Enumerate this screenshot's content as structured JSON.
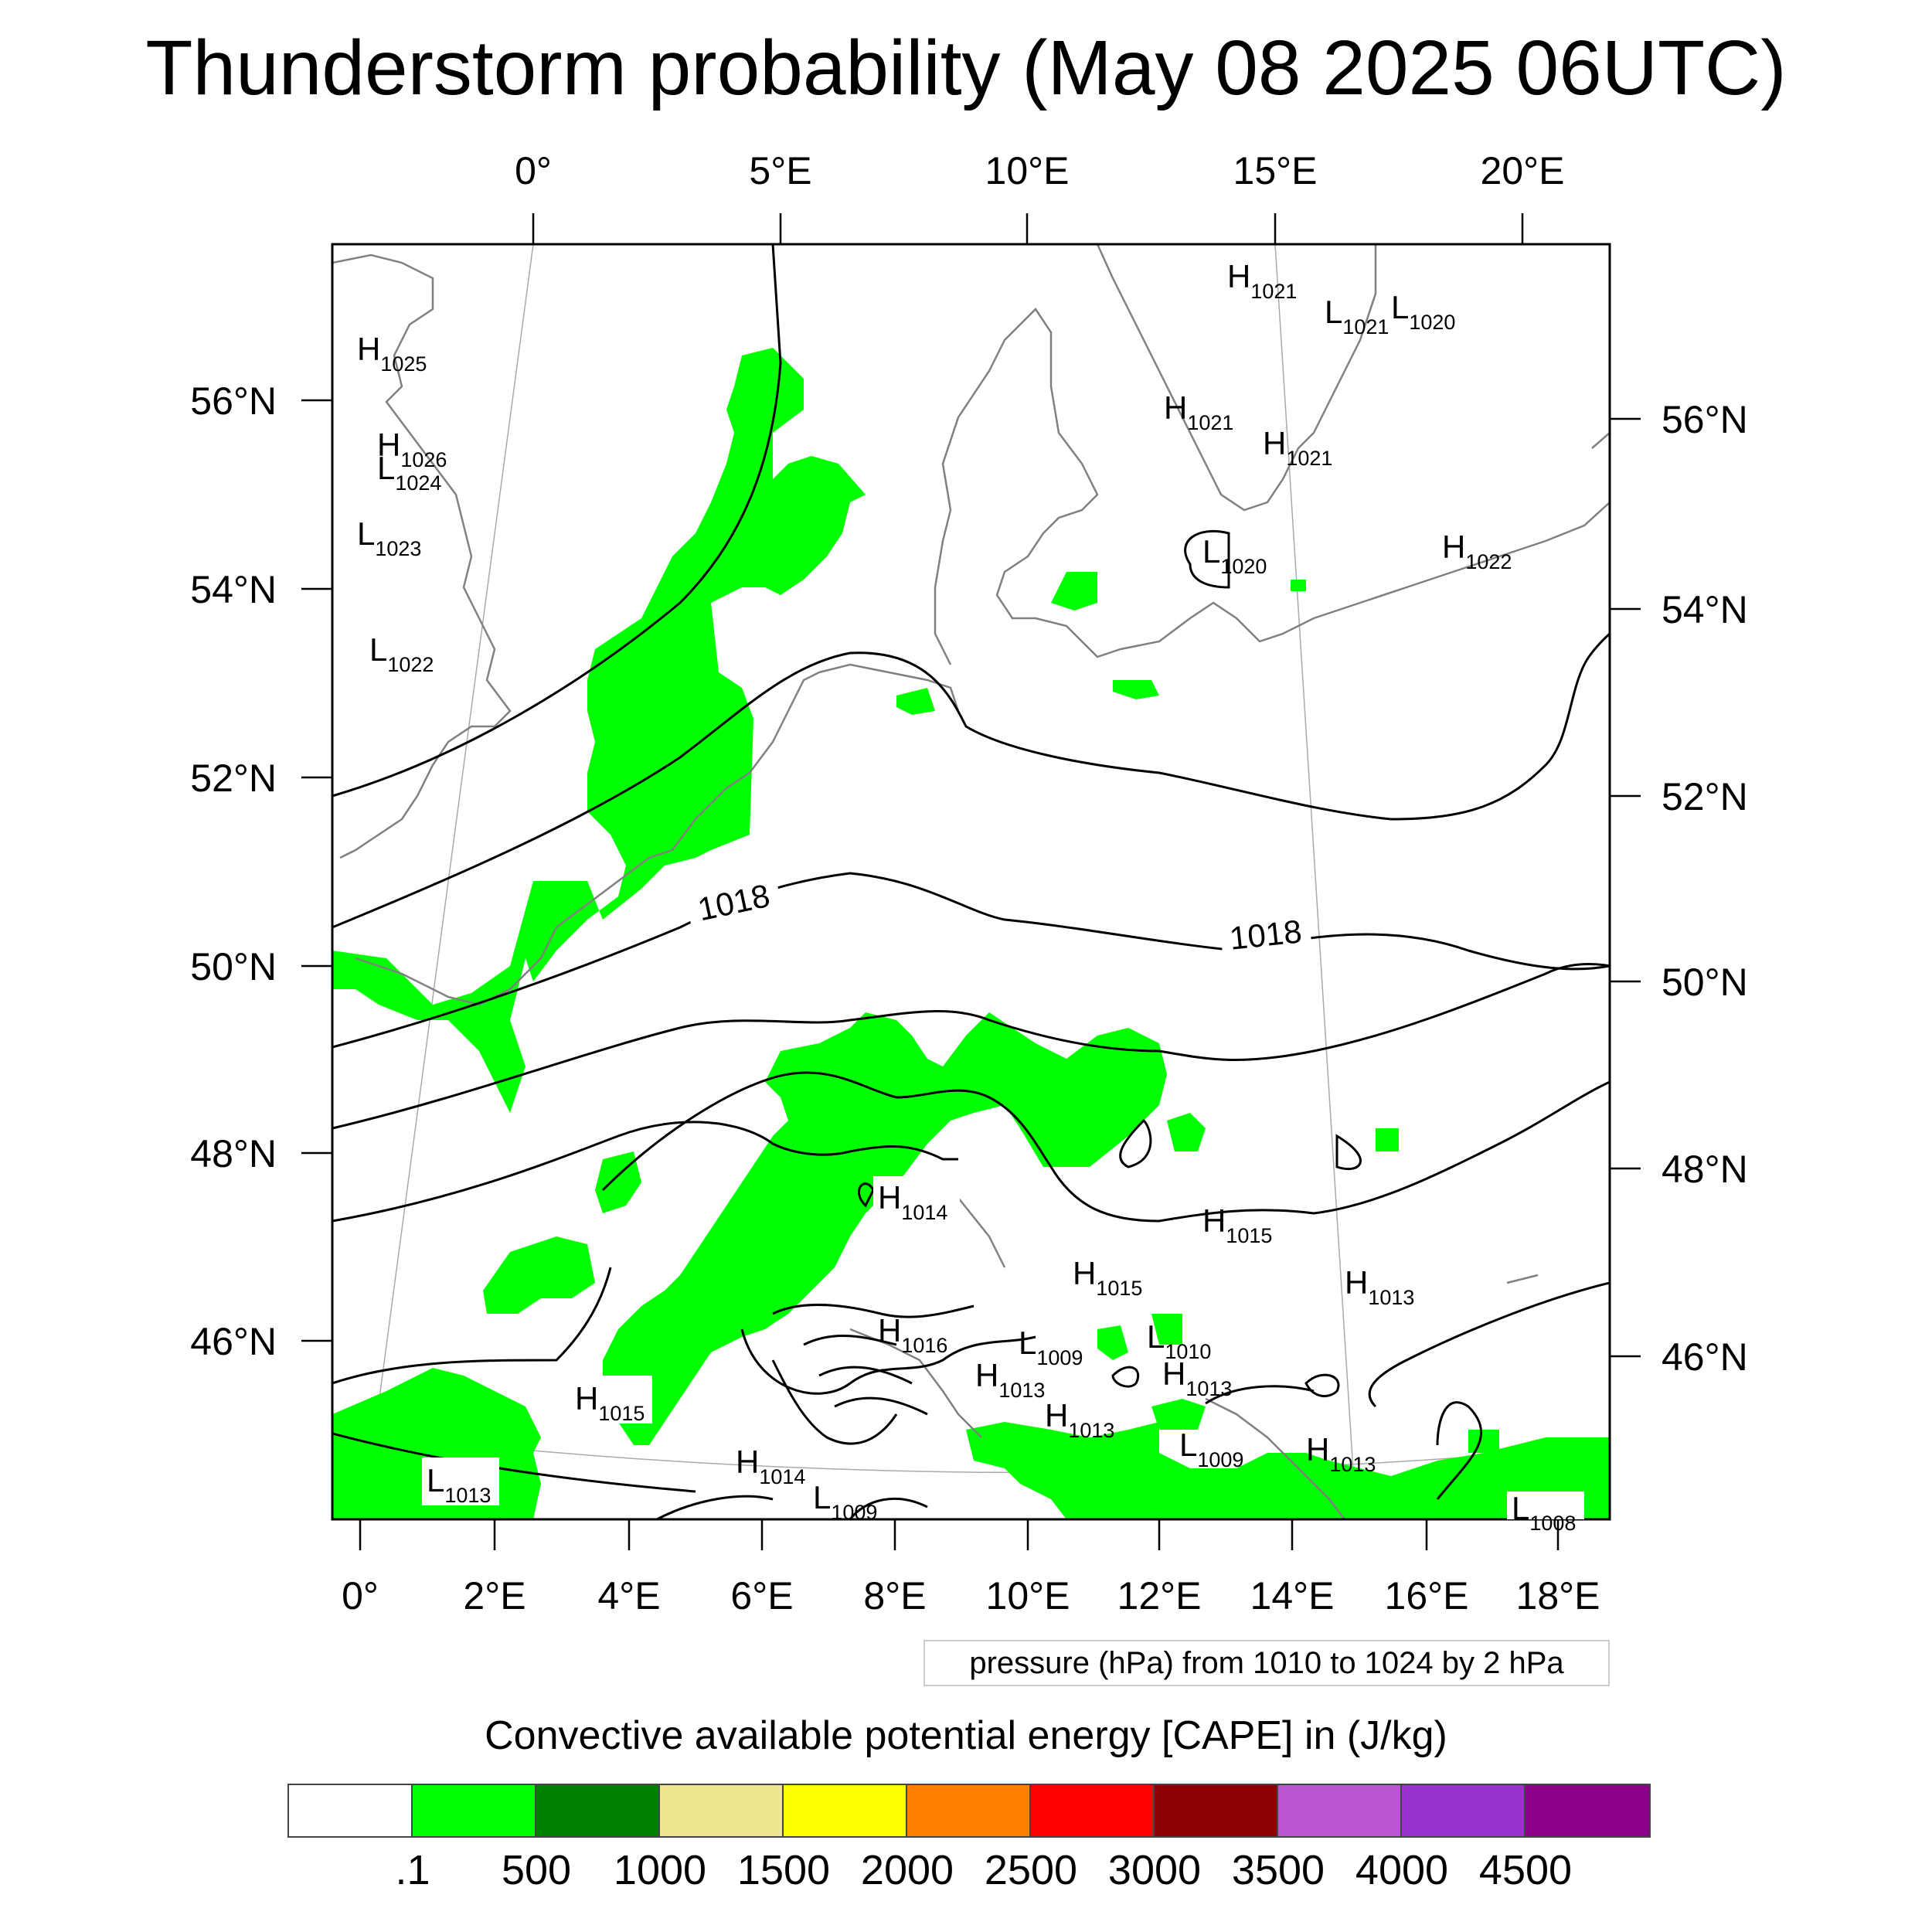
{
  "title": "Thunderstorm probability (May 08 2025 06UTC)",
  "top_axis_labels": [
    "0°",
    "5°E",
    "10°E",
    "15°E",
    "20°E"
  ],
  "bottom_axis_labels": [
    "0°",
    "2°E",
    "4°E",
    "6°E",
    "8°E",
    "10°E",
    "12°E",
    "14°E",
    "16°E",
    "18°E"
  ],
  "left_axis_labels": [
    "56°N",
    "54°N",
    "52°N",
    "50°N",
    "48°N",
    "46°N"
  ],
  "right_axis_labels": [
    "56°N",
    "54°N",
    "52°N",
    "50°N",
    "48°N",
    "46°N"
  ],
  "contour_labels": [
    "1018",
    "1018"
  ],
  "pressure_centers": [
    {
      "type": "H",
      "value": "1025"
    },
    {
      "type": "H",
      "value": "1026"
    },
    {
      "type": "L",
      "value": "1024"
    },
    {
      "type": "L",
      "value": "1023"
    },
    {
      "type": "L",
      "value": "1022"
    },
    {
      "type": "H",
      "value": "1021"
    },
    {
      "type": "L",
      "value": "1021"
    },
    {
      "type": "L",
      "value": "1020"
    },
    {
      "type": "H",
      "value": "1021"
    },
    {
      "type": "H",
      "value": "1021"
    },
    {
      "type": "L",
      "value": "1020"
    },
    {
      "type": "H",
      "value": "1022"
    },
    {
      "type": "H",
      "value": "1014"
    },
    {
      "type": "H",
      "value": "1015"
    },
    {
      "type": "H",
      "value": "1015"
    },
    {
      "type": "H",
      "value": "1013"
    },
    {
      "type": "H",
      "value": "1016"
    },
    {
      "type": "L",
      "value": "1009"
    },
    {
      "type": "L",
      "value": "1010"
    },
    {
      "type": "H",
      "value": "1013"
    },
    {
      "type": "H",
      "value": "1013"
    },
    {
      "type": "H",
      "value": "1013"
    },
    {
      "type": "H",
      "value": "1015"
    },
    {
      "type": "L",
      "value": "1009"
    },
    {
      "type": "H",
      "value": "1013"
    },
    {
      "type": "H",
      "value": "1014"
    },
    {
      "type": "L",
      "value": "1009"
    },
    {
      "type": "L",
      "value": "1013"
    },
    {
      "type": "L",
      "value": "1008"
    }
  ],
  "contour_note": "pressure (hPa) from 1010 to 1024 by 2 hPa",
  "colorbar": {
    "title": "Convective available potential energy [CAPE] in (J/kg)",
    "colors": [
      "#ffffff",
      "#00ff00",
      "#007f00",
      "#eee58c",
      "#ffff00",
      "#ff8000",
      "#ff0000",
      "#8b0000",
      "#ba55d3",
      "#9932cc",
      "#8b008b"
    ],
    "labels": [
      ".1",
      "500",
      "1000",
      "1500",
      "2000",
      "2500",
      "3000",
      "3500",
      "4000",
      "4500"
    ]
  },
  "colors": {
    "cape_fill": "#00ff00",
    "coastline": "#808080",
    "isobar": "#000000",
    "graticule": "#aaaaaa"
  }
}
